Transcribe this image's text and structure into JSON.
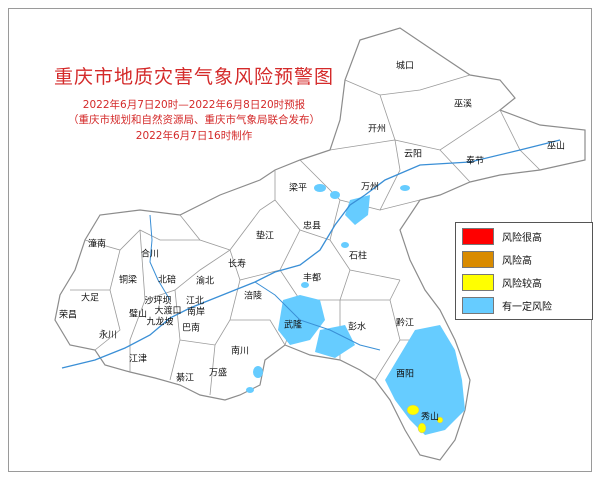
{
  "title": "重庆市地质灾害气象风险预警图",
  "subtitle": {
    "period": "2022年6月7日20时—2022年6月8日20时预报",
    "issuer": "（重庆市规划和自然资源局、重庆市气象局联合发布）",
    "made": "2022年6月7日16时制作"
  },
  "legend": [
    {
      "label": "风险很高",
      "color": "#ff0000"
    },
    {
      "label": "风险高",
      "color": "#d98b00"
    },
    {
      "label": "风险较高",
      "color": "#ffff00"
    },
    {
      "label": "有一定风险",
      "color": "#66ccff"
    }
  ],
  "districts": [
    "城口",
    "巫溪",
    "开州",
    "巫山",
    "云阳",
    "奉节",
    "梁平",
    "万州",
    "忠县",
    "垫江",
    "石柱",
    "潼南",
    "合川",
    "铜梁",
    "北碚",
    "渝北",
    "长寿",
    "大足",
    "沙坪坝",
    "江北",
    "丰都",
    "涪陵",
    "荣昌",
    "璧山",
    "大渡口",
    "南岸",
    "九龙坡",
    "巴南",
    "永川",
    "武隆",
    "彭水",
    "黔江",
    "南川",
    "江津",
    "綦江",
    "万盛",
    "酉阳",
    "秀山"
  ],
  "colors": {
    "title": "#d42a2a",
    "river": "#3a8fd6",
    "border": "#8c8c8c"
  }
}
